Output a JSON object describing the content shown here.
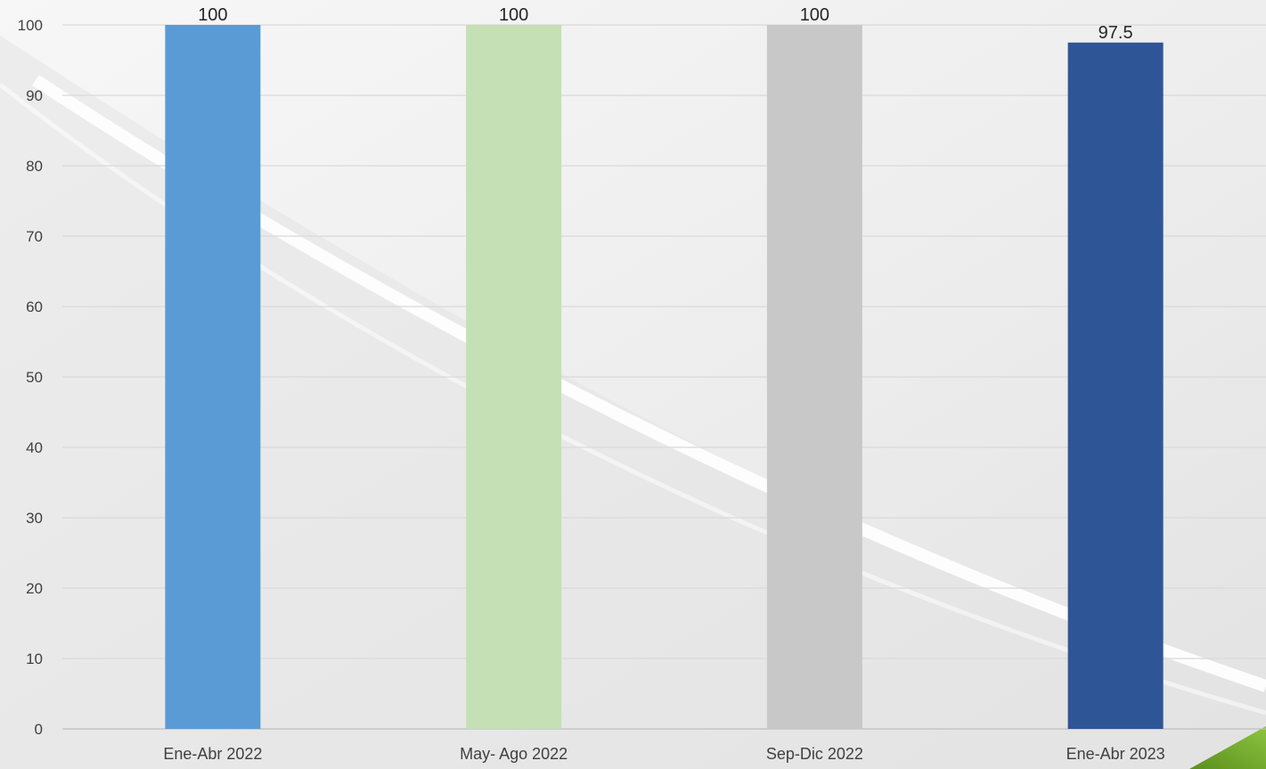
{
  "chart_data": {
    "type": "bar",
    "categories": [
      "Ene-Abr 2022",
      "May- Ago 2022",
      "Sep-Dic 2022",
      "Ene-Abr 2023"
    ],
    "values": [
      100,
      100,
      100,
      97.5
    ],
    "data_labels": [
      "100",
      "100",
      "100",
      "97.5"
    ],
    "bar_colors": [
      "#5b9bd5",
      "#c5e0b4",
      "#c8c8c8",
      "#2e5596"
    ],
    "yticks": [
      "0",
      "10",
      "20",
      "30",
      "40",
      "50",
      "60",
      "70",
      "80",
      "90",
      "100"
    ],
    "ylim": [
      0,
      100
    ],
    "grid": true,
    "legend": false
  }
}
